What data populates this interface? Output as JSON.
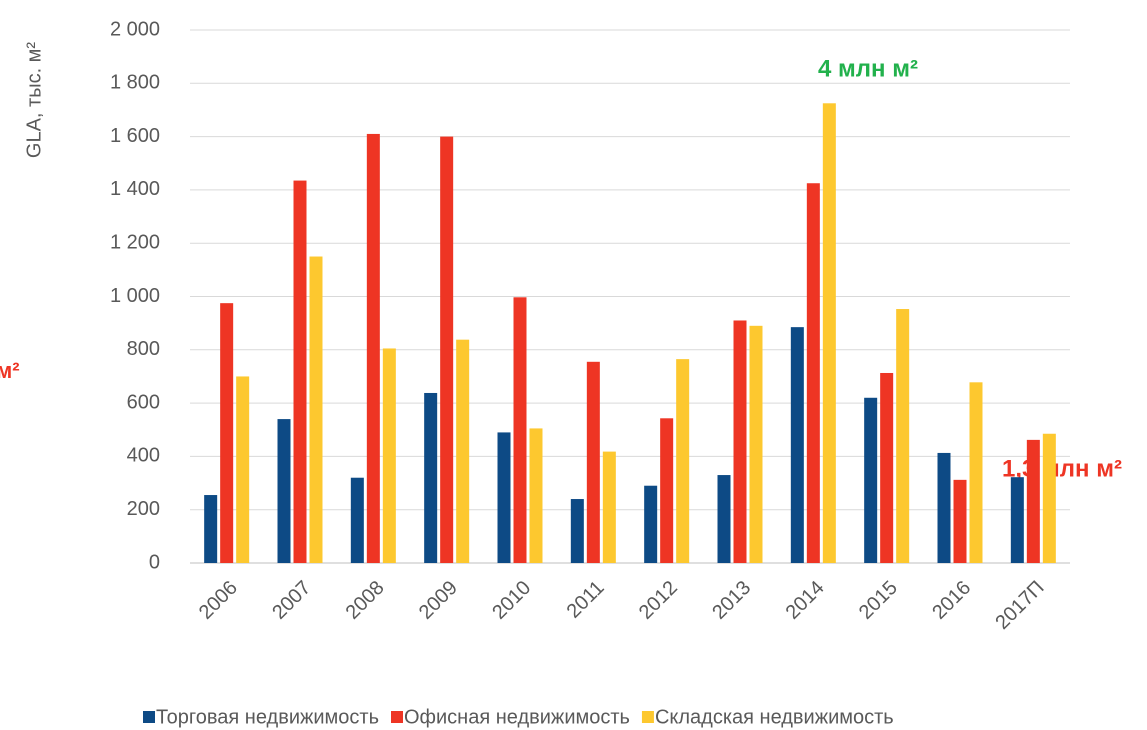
{
  "chart_data": {
    "type": "bar",
    "y_label": "GLA, тыс. м²",
    "annotations": [
      "4 млн м²",
      "1,3 млн м²",
      "м²"
    ],
    "categories": [
      "2006",
      "2007",
      "2008",
      "2009",
      "2010",
      "2011",
      "2012",
      "2013",
      "2014",
      "2015",
      "2016",
      "2017П"
    ],
    "series": [
      {
        "name": "Торговая недвижимость",
        "color": "#0d4a85",
        "values": [
          255,
          540,
          320,
          638,
          490,
          240,
          290,
          330,
          885,
          620,
          413,
          322
        ]
      },
      {
        "name": "Офисная недвижимость",
        "color": "#ee3524",
        "values": [
          975,
          1435,
          1610,
          1600,
          997,
          755,
          543,
          910,
          1425,
          713,
          312,
          462
        ]
      },
      {
        "name": "Складская недвижимость",
        "color": "#fdc82f",
        "values": [
          700,
          1150,
          805,
          838,
          505,
          418,
          765,
          890,
          1725,
          953,
          678,
          485
        ]
      }
    ],
    "ylim": [
      0,
      2000
    ],
    "yticks": [
      0,
      200,
      400,
      600,
      800,
      {
        "value": 1000,
        "label": "1 000"
      },
      {
        "value": 1200,
        "label": "1 200"
      },
      {
        "value": 1400,
        "label": "1 400"
      },
      {
        "value": 1600,
        "label": "1 600"
      },
      {
        "value": 1800,
        "label": "1 800"
      },
      {
        "value": 2000,
        "label": "2 000"
      }
    ],
    "grid": true,
    "legend": "bottom"
  }
}
